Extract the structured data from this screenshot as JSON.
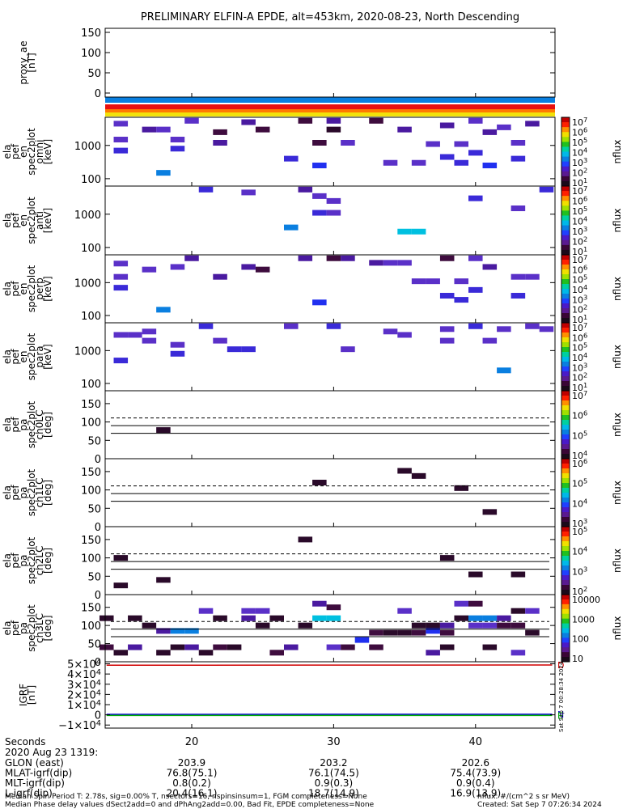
{
  "title": "PRELIMINARY ELFIN-A EPDE, alt=453km, 2020-08-23, North Descending",
  "colors": {
    "bar_blue": "#0a7fe0",
    "bar_red": "#e81010",
    "bar_orange": "#ff7a00",
    "bar_yellow": "#f2e20a",
    "grf_N": "#0000d0",
    "grf_E": "#00b000",
    "grf_D": "#d00000"
  },
  "chart_data": [
    {
      "type": "line",
      "ylabel": [
        "proxy_ae",
        "[nT]"
      ],
      "yticks": [
        "150",
        "100",
        "50",
        "0"
      ],
      "ylim": [
        -10,
        160
      ]
    },
    {
      "type": "heatmap",
      "ylabel": [
        "ela",
        "pef",
        "en",
        "spec2plot",
        "omni",
        "[keV]"
      ],
      "yticks": [
        "1000",
        "100"
      ],
      "ylog": true,
      "ylim": [
        60,
        7000
      ],
      "colorbar": {
        "label": "nflux",
        "ticks": [
          "10^7",
          "10^6",
          "10^5",
          "10^4",
          "10^3",
          "10^2",
          "10^1"
        ],
        "scale": "log",
        "range": [
          10,
          10000000.0
        ]
      },
      "cells": [
        [
          15,
          4500,
          4
        ],
        [
          15,
          1500,
          4
        ],
        [
          15,
          700,
          5
        ],
        [
          17,
          3000,
          3
        ],
        [
          18,
          150,
          7
        ],
        [
          18,
          3000,
          4
        ],
        [
          19,
          1500,
          4
        ],
        [
          19,
          800,
          5
        ],
        [
          20,
          5500,
          4
        ],
        [
          22,
          2500,
          2
        ],
        [
          22,
          1200,
          3
        ],
        [
          24,
          5000,
          3
        ],
        [
          25,
          3000,
          2
        ],
        [
          27,
          400,
          5
        ],
        [
          28,
          5500,
          2
        ],
        [
          29,
          250,
          6
        ],
        [
          29,
          1200,
          2
        ],
        [
          30,
          3000,
          1
        ],
        [
          30,
          5500,
          3
        ],
        [
          31,
          1200,
          4
        ],
        [
          33,
          5500,
          2
        ],
        [
          34,
          300,
          4
        ],
        [
          35,
          3000,
          3
        ],
        [
          36,
          300,
          4
        ],
        [
          37,
          1100,
          4
        ],
        [
          38,
          4000,
          3
        ],
        [
          38,
          450,
          5
        ],
        [
          39,
          1100,
          4
        ],
        [
          39,
          300,
          5
        ],
        [
          40,
          5500,
          4
        ],
        [
          40,
          600,
          5
        ],
        [
          41,
          2500,
          3
        ],
        [
          41,
          250,
          6
        ],
        [
          42,
          3500,
          4
        ],
        [
          43,
          1200,
          4
        ],
        [
          43,
          400,
          5
        ],
        [
          44,
          4500,
          3
        ]
      ]
    },
    {
      "type": "heatmap",
      "ylabel": [
        "ela",
        "pef",
        "en",
        "spec2plot",
        "anti",
        "[keV]"
      ],
      "yticks": [
        "1000",
        "100"
      ],
      "ylog": true,
      "ylim": [
        60,
        7000
      ],
      "colorbar": {
        "label": "nflux",
        "ticks": [
          "10^7",
          "10^6",
          "10^5",
          "10^4",
          "10^3",
          "10^2",
          "10^1"
        ],
        "scale": "log",
        "range": [
          10,
          10000000.0
        ]
      },
      "cells": [
        [
          21,
          5500,
          5
        ],
        [
          24,
          4500,
          4
        ],
        [
          27,
          400,
          7
        ],
        [
          28,
          5500,
          3
        ],
        [
          29,
          3500,
          4
        ],
        [
          29,
          1100,
          5
        ],
        [
          30,
          2500,
          4
        ],
        [
          30,
          1100,
          4
        ],
        [
          35,
          300,
          8
        ],
        [
          36,
          300,
          8
        ],
        [
          40,
          3000,
          5
        ],
        [
          43,
          1500,
          4
        ],
        [
          45,
          5500,
          5
        ]
      ]
    },
    {
      "type": "heatmap",
      "ylabel": [
        "ela",
        "pef",
        "en",
        "spec2plot",
        "perp",
        "[keV]"
      ],
      "yticks": [
        "1000",
        "100"
      ],
      "ylog": true,
      "ylim": [
        60,
        7000
      ],
      "colorbar": {
        "label": "nflux",
        "ticks": [
          "10^7",
          "10^6",
          "10^5",
          "10^4",
          "10^3",
          "10^2",
          "10^1"
        ],
        "scale": "log",
        "range": [
          10,
          10000000.0
        ]
      },
      "cells": [
        [
          15,
          3800,
          4
        ],
        [
          15,
          1500,
          4
        ],
        [
          15,
          700,
          5
        ],
        [
          17,
          2500,
          4
        ],
        [
          18,
          150,
          7
        ],
        [
          19,
          3000,
          4
        ],
        [
          20,
          5500,
          3
        ],
        [
          22,
          1500,
          3
        ],
        [
          24,
          3000,
          3
        ],
        [
          25,
          2500,
          2
        ],
        [
          28,
          5500,
          3
        ],
        [
          29,
          250,
          6
        ],
        [
          30,
          5500,
          2
        ],
        [
          31,
          5500,
          3
        ],
        [
          33,
          4000,
          3
        ],
        [
          34,
          4000,
          4
        ],
        [
          35,
          4000,
          4
        ],
        [
          36,
          1100,
          4
        ],
        [
          37,
          1100,
          4
        ],
        [
          38,
          5500,
          2
        ],
        [
          38,
          400,
          5
        ],
        [
          39,
          1100,
          4
        ],
        [
          39,
          300,
          5
        ],
        [
          40,
          5500,
          4
        ],
        [
          40,
          600,
          5
        ],
        [
          41,
          3000,
          3
        ],
        [
          43,
          1500,
          4
        ],
        [
          43,
          400,
          5
        ],
        [
          44,
          1500,
          4
        ]
      ]
    },
    {
      "type": "heatmap",
      "ylabel": [
        "ela",
        "pef",
        "en",
        "spec2plot",
        "para",
        "[keV]"
      ],
      "yticks": [
        "1000",
        "100"
      ],
      "ylog": true,
      "ylim": [
        60,
        7000
      ],
      "colorbar": {
        "label": "nflux",
        "ticks": [
          "10^7",
          "10^6",
          "10^5",
          "10^4",
          "10^3",
          "10^2",
          "10^1"
        ],
        "scale": "log",
        "range": [
          10,
          10000000.0
        ]
      },
      "cells": [
        [
          15,
          3000,
          4
        ],
        [
          15,
          500,
          5
        ],
        [
          16,
          3000,
          4
        ],
        [
          17,
          2000,
          4
        ],
        [
          17,
          3800,
          4
        ],
        [
          19,
          1500,
          4
        ],
        [
          19,
          800,
          5
        ],
        [
          21,
          5500,
          5
        ],
        [
          22,
          2000,
          4
        ],
        [
          23,
          1100,
          5
        ],
        [
          24,
          1100,
          5
        ],
        [
          27,
          5500,
          4
        ],
        [
          30,
          5500,
          5
        ],
        [
          31,
          1100,
          4
        ],
        [
          34,
          3800,
          4
        ],
        [
          35,
          3000,
          4
        ],
        [
          38,
          4500,
          4
        ],
        [
          38,
          2000,
          4
        ],
        [
          40,
          5500,
          5
        ],
        [
          41,
          2000,
          4
        ],
        [
          42,
          4500,
          4
        ],
        [
          42,
          250,
          7
        ],
        [
          44,
          5500,
          4
        ],
        [
          45,
          4500,
          4
        ]
      ]
    },
    {
      "type": "heatmap",
      "ylabel": [
        "ela",
        "pef",
        "pa",
        "spec2plot",
        "ch0LC",
        "[deg]"
      ],
      "yticks": [
        "150",
        "100",
        "50",
        "0"
      ],
      "ylim": [
        0,
        185
      ],
      "dashed_line": 111,
      "solid_lines": [
        90,
        69
      ],
      "colorbar": {
        "label": "nflux",
        "ticks": [
          "10^7",
          "10^6",
          "10^5",
          "10^4"
        ],
        "scale": "log",
        "range": [
          1000.0,
          10000000.0
        ]
      },
      "cells": [
        [
          18,
          78,
          1
        ]
      ]
    },
    {
      "type": "heatmap",
      "ylabel": [
        "ela",
        "pef",
        "pa",
        "spec2plot",
        "ch1LC",
        "[deg]"
      ],
      "yticks": [
        "150",
        "100",
        "50",
        "0"
      ],
      "ylim": [
        0,
        185
      ],
      "dashed_line": 111,
      "solid_lines": [
        90,
        69
      ],
      "colorbar": {
        "label": "nflux",
        "ticks": [
          "10^6",
          "10^5",
          "10^4",
          "10^3"
        ],
        "scale": "log",
        "range": [
          100,
          10000000.0
        ]
      },
      "cells": [
        [
          29,
          120,
          1
        ],
        [
          35,
          152,
          1
        ],
        [
          36,
          138,
          1
        ],
        [
          39,
          105,
          1
        ],
        [
          41,
          40,
          1
        ]
      ]
    },
    {
      "type": "heatmap",
      "ylabel": [
        "ela",
        "pef",
        "pa",
        "spec2plot",
        "ch2LC",
        "[deg]"
      ],
      "yticks": [
        "150",
        "100",
        "50",
        "0"
      ],
      "ylim": [
        0,
        185
      ],
      "dashed_line": 111,
      "solid_lines": [
        90,
        69
      ],
      "colorbar": {
        "label": "nflux",
        "ticks": [
          "10^5",
          "10^4",
          "10^3",
          "10^2"
        ],
        "scale": "log",
        "range": [
          10,
          1000000.0
        ]
      },
      "cells": [
        [
          15,
          100,
          1
        ],
        [
          15,
          25,
          1
        ],
        [
          18,
          40,
          1
        ],
        [
          28,
          150,
          1
        ],
        [
          38,
          100,
          1
        ],
        [
          40,
          55,
          1
        ],
        [
          43,
          55,
          1
        ]
      ]
    },
    {
      "type": "heatmap",
      "ylabel": [
        "ela",
        "pef",
        "pa",
        "spec2plot",
        "ch3LC",
        "[deg]"
      ],
      "yticks": [
        "150",
        "100",
        "50",
        "0"
      ],
      "ylim": [
        0,
        185
      ],
      "dashed_line": 111,
      "solid_lines": [
        90,
        69
      ],
      "colorbar": {
        "label": "nflux",
        "ticks": [
          "10000",
          "1000",
          "100",
          "10"
        ],
        "scale": "log",
        "range": [
          3,
          30000.0
        ]
      },
      "cells": [
        [
          14,
          120,
          1
        ],
        [
          14,
          40,
          2
        ],
        [
          15,
          25,
          1
        ],
        [
          16,
          120,
          1
        ],
        [
          16,
          40,
          3
        ],
        [
          17,
          100,
          1
        ],
        [
          18,
          25,
          1
        ],
        [
          18,
          85,
          3
        ],
        [
          19,
          85,
          7
        ],
        [
          19,
          40,
          1
        ],
        [
          20,
          85,
          7
        ],
        [
          20,
          40,
          3
        ],
        [
          21,
          140,
          4
        ],
        [
          21,
          25,
          1
        ],
        [
          22,
          120,
          1
        ],
        [
          22,
          40,
          2
        ],
        [
          23,
          40,
          1
        ],
        [
          24,
          140,
          4
        ],
        [
          24,
          120,
          3
        ],
        [
          25,
          140,
          4
        ],
        [
          25,
          100,
          1
        ],
        [
          26,
          120,
          1
        ],
        [
          26,
          25,
          2
        ],
        [
          27,
          40,
          3
        ],
        [
          28,
          100,
          1
        ],
        [
          29,
          160,
          3
        ],
        [
          29,
          120,
          8
        ],
        [
          30,
          150,
          2
        ],
        [
          30,
          120,
          8
        ],
        [
          30,
          40,
          4
        ],
        [
          31,
          40,
          2
        ],
        [
          32,
          60,
          6
        ],
        [
          33,
          80,
          2
        ],
        [
          33,
          40,
          2
        ],
        [
          34,
          80,
          1
        ],
        [
          35,
          140,
          4
        ],
        [
          35,
          80,
          1
        ],
        [
          36,
          100,
          1
        ],
        [
          36,
          80,
          2
        ],
        [
          37,
          100,
          1
        ],
        [
          37,
          85,
          6
        ],
        [
          37,
          25,
          3
        ],
        [
          38,
          100,
          3
        ],
        [
          38,
          80,
          2
        ],
        [
          38,
          40,
          1
        ],
        [
          39,
          160,
          4
        ],
        [
          39,
          120,
          1
        ],
        [
          40,
          160,
          2
        ],
        [
          40,
          120,
          7
        ],
        [
          40,
          100,
          4
        ],
        [
          41,
          120,
          7
        ],
        [
          41,
          100,
          4
        ],
        [
          41,
          40,
          1
        ],
        [
          42,
          120,
          3
        ],
        [
          42,
          100,
          2
        ],
        [
          43,
          140,
          1
        ],
        [
          43,
          100,
          2
        ],
        [
          43,
          25,
          4
        ],
        [
          44,
          140,
          4
        ],
        [
          44,
          80,
          1
        ]
      ]
    },
    {
      "type": "line",
      "ylabel": [
        "IGRF",
        "[nT]"
      ],
      "yticks": [
        "5×10^4",
        "4×10^4",
        "3×10^4",
        "2×10^4",
        "1×10^4",
        "0",
        "−1×10^4"
      ],
      "ylim": [
        -13000.0,
        52000.0
      ],
      "series": [
        {
          "name": "N",
          "x": [
            14,
            45.4
          ],
          "y": [
            500,
            600
          ]
        },
        {
          "name": "E",
          "x": [
            14,
            45.4
          ],
          "y": [
            -600,
            -600
          ]
        },
        {
          "name": "D",
          "x": [
            14,
            45.4
          ],
          "y": [
            48600,
            48800
          ]
        }
      ]
    }
  ],
  "x_axis": {
    "ticks": [
      "20",
      "30",
      "40"
    ],
    "tick_values": [
      20,
      30,
      40
    ],
    "xlim": [
      13.9,
      45.6
    ]
  },
  "footer": {
    "seconds_label": "Seconds",
    "date_label": "2020 Aug 23 1319:",
    "rows": [
      {
        "label": "GLON (east)",
        "values": [
          "203.9",
          "203.2",
          "202.6"
        ]
      },
      {
        "label": "MLAT-igrf(dip)",
        "values": [
          "76.8(75.1)",
          "76.1(74.5)",
          "75.4(73.9)"
        ]
      },
      {
        "label": "MLT-igrf(dip)",
        "values": [
          "0.8(0.2)",
          "0.9(0.3)",
          "0.9(0.4)"
        ]
      },
      {
        "label": "L-igrf(dip)",
        "values": [
          "20.4(16.1)",
          "18.7(14.9)",
          "16.9(13.9)"
        ]
      }
    ],
    "note1": "Median Spin Period T: 2.78s, sig=0.00% T, nsectors=16, nspinsinsum=1, FGM completeness=None",
    "note1_right": "nflux: #/(cm^2 s sr MeV)",
    "note2": "Median Phase delay values dSect2add=0 and dPhAng2add=0.00, Bad Fit, EPDE completeness=None",
    "note2_right": "Created: Sat Sep  7 07:26:34 2024",
    "side_stamp": "Sat Sep  7 00:28:34 2024"
  }
}
